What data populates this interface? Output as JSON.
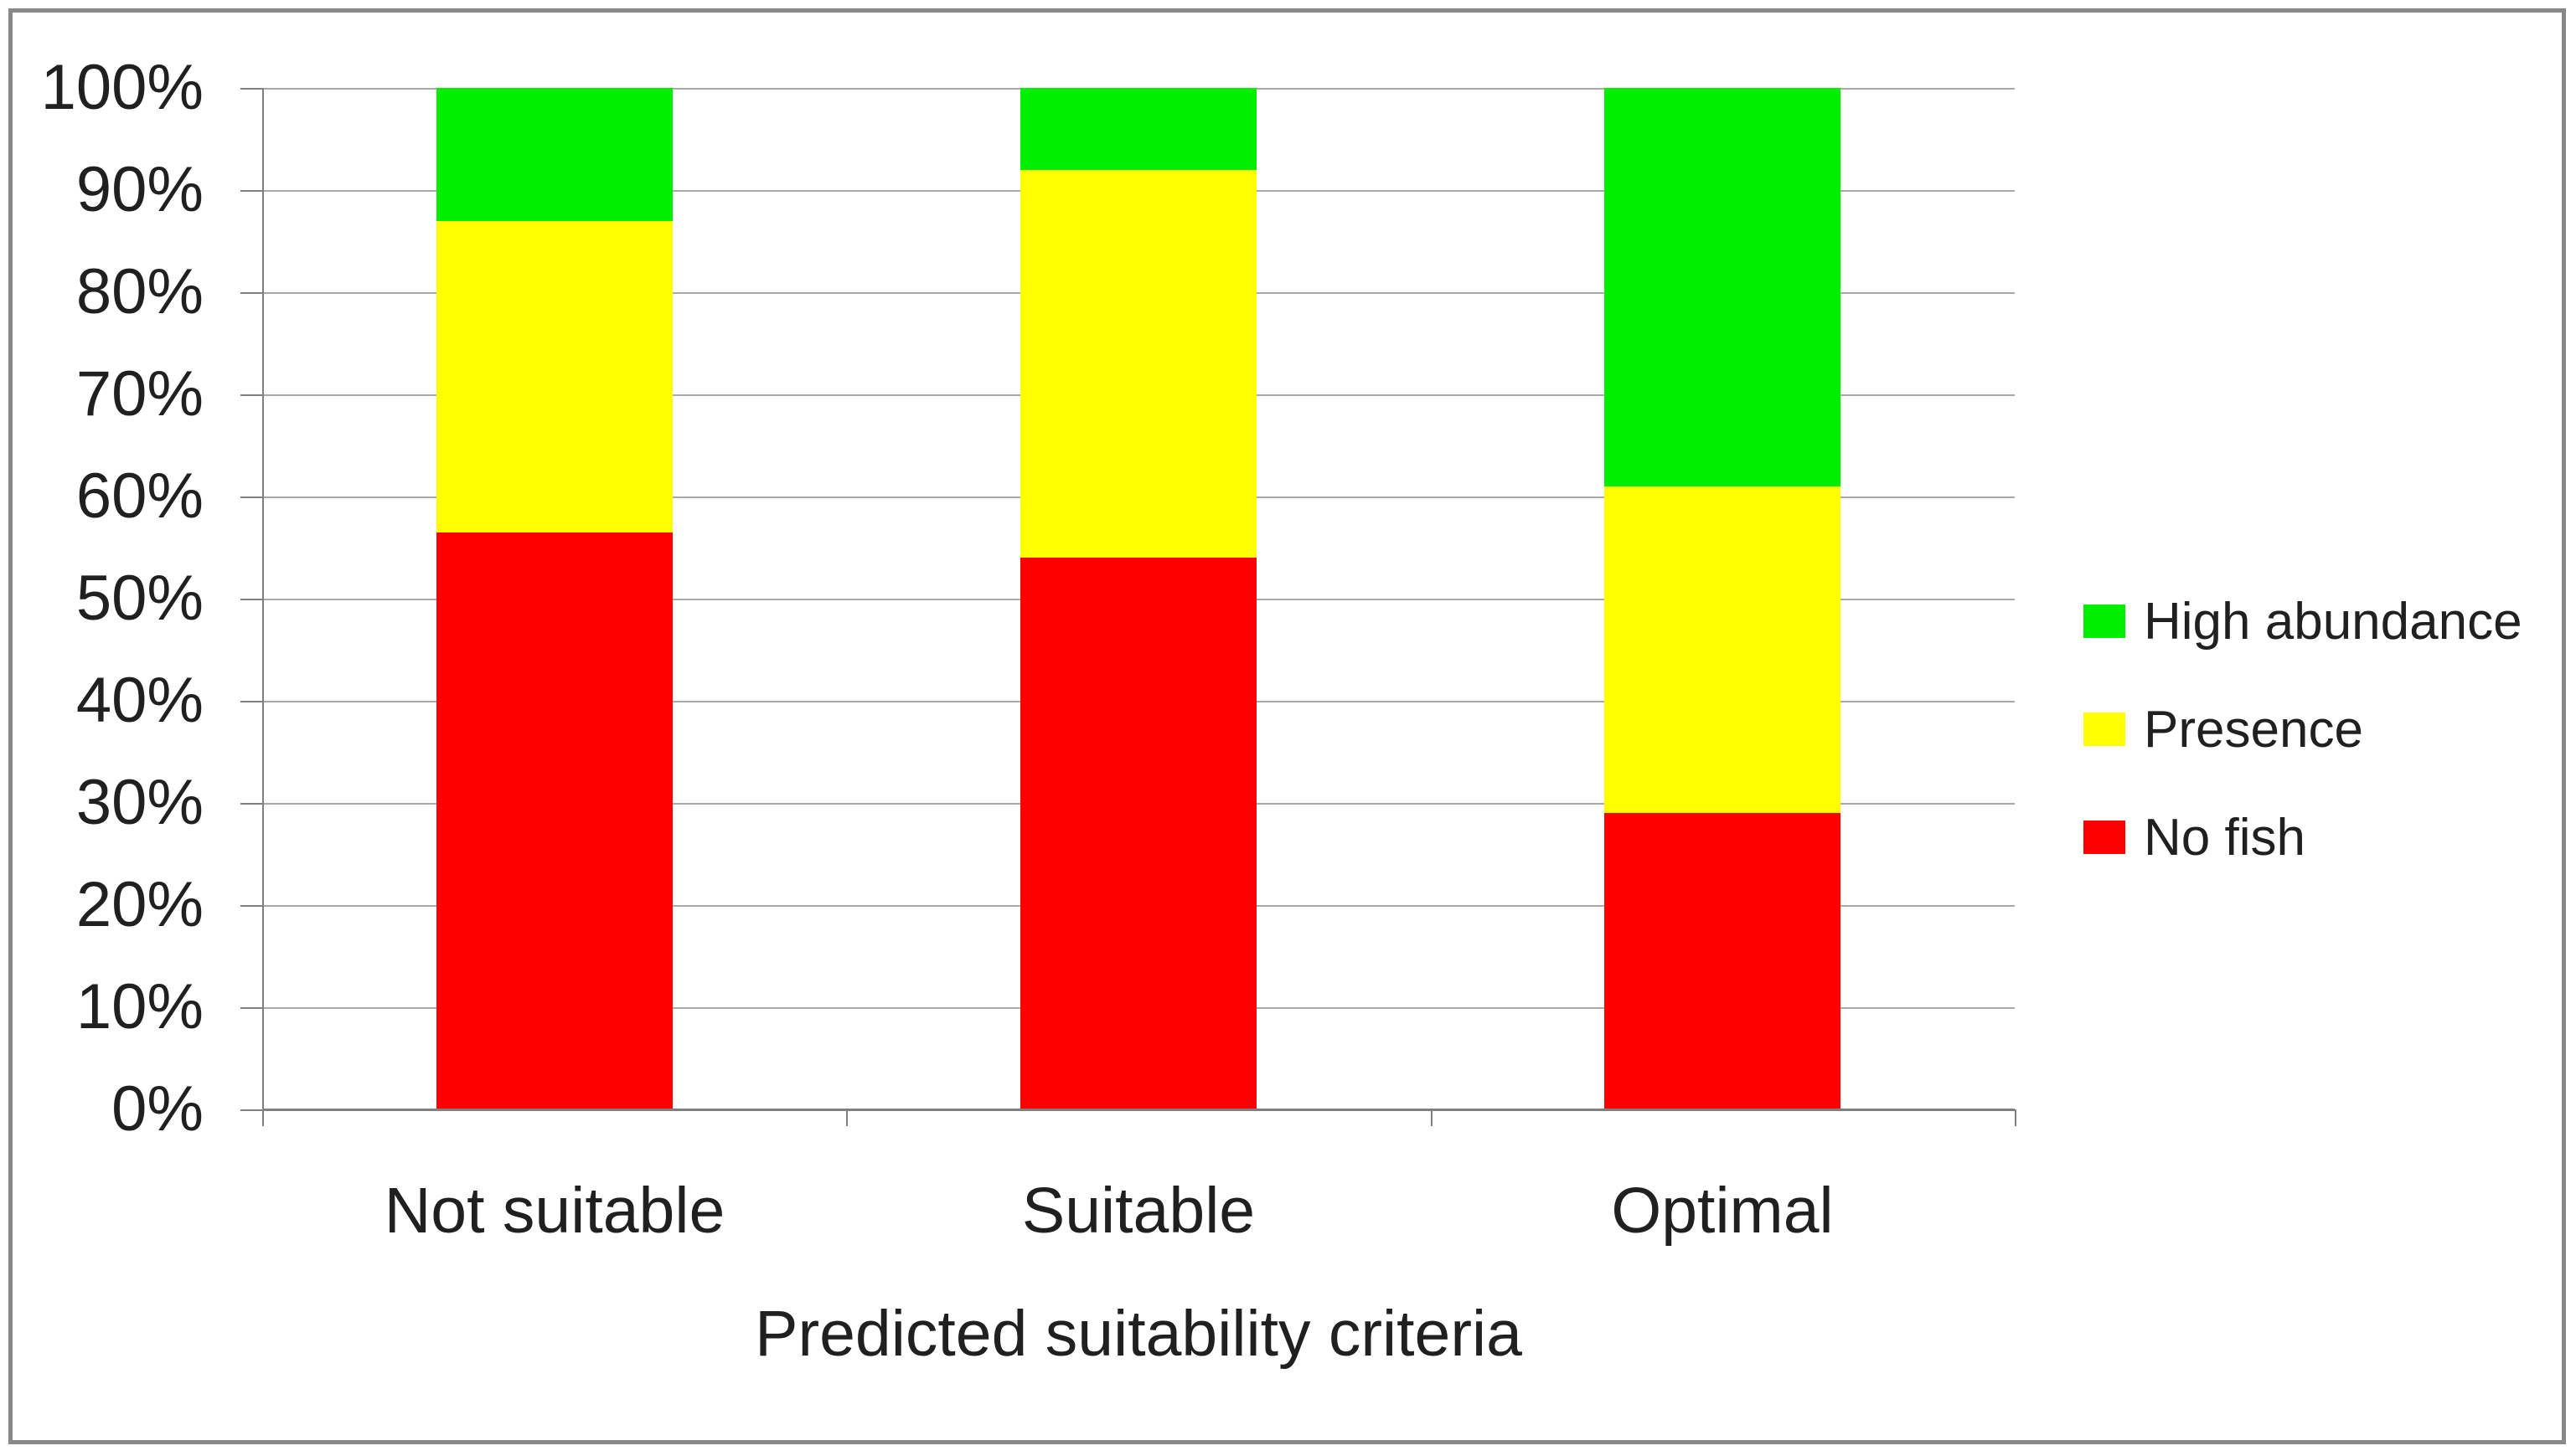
{
  "chart_data": {
    "type": "bar",
    "stacked": true,
    "percent_stacked": true,
    "categories": [
      "Not suitable",
      "Suitable",
      "Optimal"
    ],
    "series": [
      {
        "name": "No fish",
        "color": "#FF0000",
        "values": [
          56.5,
          54,
          29
        ]
      },
      {
        "name": "Presence",
        "color": "#FFFF00",
        "values": [
          30.5,
          38,
          32
        ]
      },
      {
        "name": "High abundance",
        "color": "#00EE00",
        "values": [
          13,
          8,
          39
        ]
      }
    ],
    "xlabel": "Predicted suitability criteria",
    "ylim": [
      0,
      100
    ],
    "y_tick_step": 10,
    "y_ticks": [
      "100%",
      "90%",
      "80%",
      "70%",
      "60%",
      "50%",
      "40%",
      "30%",
      "20%",
      "10%",
      "0%"
    ],
    "grid": true,
    "legend": {
      "position": "right",
      "items": [
        {
          "label": "High abundance",
          "color": "#00EE00"
        },
        {
          "label": "Presence",
          "color": "#FFFF00"
        },
        {
          "label": "No fish",
          "color": "#FF0000"
        }
      ]
    },
    "style_colors": {
      "gridline": "#A9A9A9",
      "axis": "#808080",
      "frame": "#898989",
      "text": "#202020",
      "background": "#FFFFFF"
    }
  }
}
